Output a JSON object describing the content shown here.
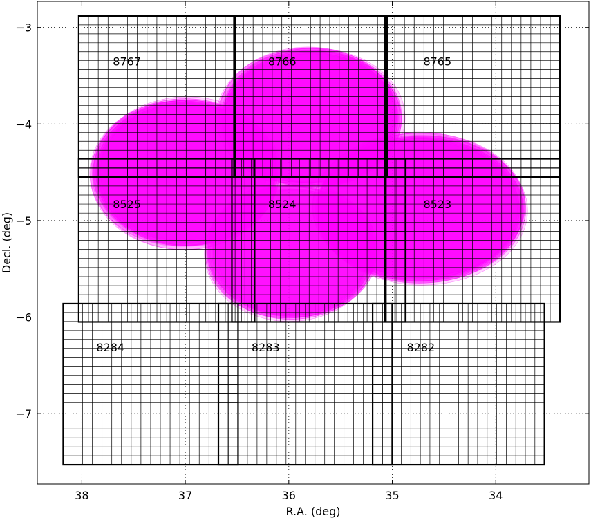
{
  "chart_data": {
    "type": "scatter",
    "title": "",
    "xlabel": "R.A. (deg)",
    "ylabel": "Decl. (deg)",
    "xlim": [
      38.43,
      33.1
    ],
    "ylim": [
      -7.73,
      -2.73
    ],
    "x_inverted": true,
    "xticks": [
      38,
      37,
      36,
      35,
      34
    ],
    "yticks": [
      -3,
      -4,
      -5,
      -6,
      -7
    ],
    "xtick_labels": [
      "38",
      "37",
      "36",
      "35",
      "34"
    ],
    "ytick_labels": [
      "−3",
      "−4",
      "−5",
      "−6",
      "−7"
    ],
    "grid": true,
    "grid_style": "dotted",
    "ellipse_color": "#ff00ff",
    "footprint_groups": [
      {
        "center": [
          37.0,
          -4.5
        ],
        "rx": 0.9,
        "ry": 0.77,
        "count": 16
      },
      {
        "center": [
          35.78,
          -3.93
        ],
        "rx": 0.88,
        "ry": 0.72,
        "count": 16
      },
      {
        "center": [
          34.72,
          -4.88
        ],
        "rx": 1.02,
        "ry": 0.77,
        "count": 16
      },
      {
        "center": [
          35.98,
          -5.33
        ],
        "rx": 0.82,
        "ry": 0.7,
        "count": 14
      }
    ],
    "tracts": [
      {
        "id": "8767",
        "ra_min": 36.52,
        "ra_max": 38.03,
        "dec_min": -4.55,
        "dec_max": -2.88,
        "cols": 8,
        "rows": 9
      },
      {
        "id": "8766",
        "ra_min": 35.05,
        "ra_max": 36.53,
        "dec_min": -4.55,
        "dec_max": -2.88,
        "cols": 8,
        "rows": 9
      },
      {
        "id": "8765",
        "ra_min": 33.38,
        "ra_max": 35.07,
        "dec_min": -4.55,
        "dec_max": -2.88,
        "cols": 9,
        "rows": 9
      },
      {
        "id": "8525",
        "ra_min": 36.33,
        "ra_max": 38.03,
        "dec_min": -6.05,
        "dec_max": -4.36,
        "cols": 9,
        "rows": 9
      },
      {
        "id": "8524",
        "ra_min": 34.87,
        "ra_max": 36.55,
        "dec_min": -6.05,
        "dec_max": -4.36,
        "cols": 9,
        "rows": 9
      },
      {
        "id": "8523",
        "ra_min": 33.38,
        "ra_max": 35.07,
        "dec_min": -6.05,
        "dec_max": -4.36,
        "cols": 9,
        "rows": 9
      },
      {
        "id": "8284",
        "ra_min": 36.49,
        "ra_max": 38.18,
        "dec_min": -7.53,
        "dec_max": -5.86,
        "cols": 9,
        "rows": 9
      },
      {
        "id": "8283",
        "ra_min": 35.0,
        "ra_max": 36.68,
        "dec_min": -7.53,
        "dec_max": -5.86,
        "cols": 9,
        "rows": 9
      },
      {
        "id": "8282",
        "ra_min": 33.53,
        "ra_max": 35.19,
        "dec_min": -7.53,
        "dec_max": -5.86,
        "cols": 9,
        "rows": 9
      }
    ],
    "tract_labels": [
      {
        "text": "8767",
        "ra": 37.7,
        "dec": -3.35
      },
      {
        "text": "8766",
        "ra": 36.2,
        "dec": -3.35
      },
      {
        "text": "8765",
        "ra": 34.7,
        "dec": -3.35
      },
      {
        "text": "8525",
        "ra": 37.7,
        "dec": -4.83
      },
      {
        "text": "8524",
        "ra": 36.2,
        "dec": -4.83
      },
      {
        "text": "8523",
        "ra": 34.7,
        "dec": -4.83
      },
      {
        "text": "8284",
        "ra": 37.86,
        "dec": -6.31
      },
      {
        "text": "8283",
        "ra": 36.36,
        "dec": -6.31
      },
      {
        "text": "8282",
        "ra": 34.86,
        "dec": -6.31
      }
    ]
  }
}
